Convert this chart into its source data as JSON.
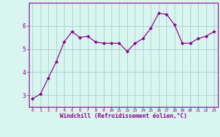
{
  "x": [
    0,
    1,
    2,
    3,
    4,
    5,
    6,
    7,
    8,
    9,
    10,
    11,
    12,
    13,
    14,
    15,
    16,
    17,
    18,
    19,
    20,
    21,
    22,
    23
  ],
  "y": [
    2.85,
    3.05,
    3.75,
    4.45,
    5.3,
    5.75,
    5.5,
    5.55,
    5.3,
    5.25,
    5.25,
    5.25,
    4.9,
    5.25,
    5.45,
    5.9,
    6.55,
    6.5,
    6.05,
    5.25,
    5.25,
    5.45,
    5.55,
    5.75
  ],
  "line_color": "#8B008B",
  "marker": "D",
  "marker_size": 2.2,
  "bg_color": "#d8f5f0",
  "grid_color": "#aacccc",
  "xlabel": "Windchill (Refroidissement éolien,°C)",
  "xlabel_color": "#8B008B",
  "tick_color": "#8B008B",
  "ylim": [
    2.5,
    7.0
  ],
  "yticks": [
    3,
    4,
    5,
    6
  ],
  "xlim": [
    -0.5,
    23.5
  ],
  "xticks": [
    0,
    1,
    2,
    3,
    4,
    5,
    6,
    7,
    8,
    9,
    10,
    11,
    12,
    13,
    14,
    15,
    16,
    17,
    18,
    19,
    20,
    21,
    22,
    23
  ],
  "xtick_fontsize": 4.5,
  "ytick_fontsize": 6.0,
  "xlabel_fontsize": 6.0
}
